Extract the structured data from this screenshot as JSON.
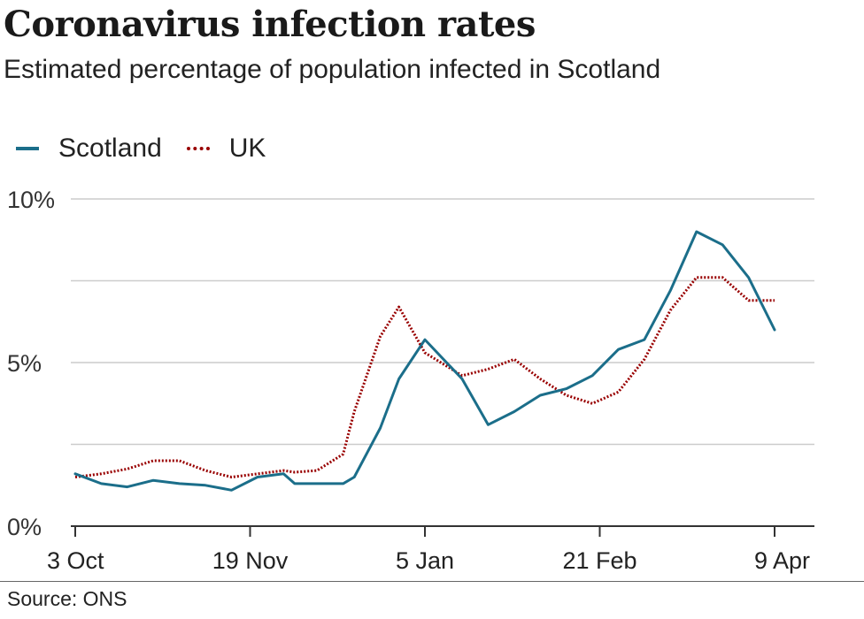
{
  "header": {
    "title": "Coronavirus infection rates",
    "subtitle": "Estimated percentage of population infected in Scotland"
  },
  "footer": {
    "source": "Source: ONS"
  },
  "colors": {
    "scotland": "#1b6e8a",
    "uk": "#990000",
    "grid": "#cccccc",
    "axis": "#333333"
  },
  "chart_data": {
    "type": "line",
    "title": "Coronavirus infection rates",
    "subtitle": "Estimated percentage of population infected in Scotland",
    "xlabel": "",
    "ylabel": "",
    "ylim": [
      0,
      10
    ],
    "y_ticks": [
      0,
      2.5,
      5,
      7.5,
      10
    ],
    "y_tick_labels": [
      "0%",
      "",
      "5%",
      "",
      "10%"
    ],
    "x_ticks": [
      "2020-10-03",
      "2020-11-19",
      "2021-01-05",
      "2021-02-21",
      "2021-04-09"
    ],
    "x_tick_labels": [
      "3 Oct",
      "19 Nov",
      "5 Jan",
      "21 Feb",
      "9 Apr"
    ],
    "grid": true,
    "legend_position": "top-left",
    "series": [
      {
        "name": "Scotland",
        "style": "solid",
        "x": [
          "2020-10-03",
          "2020-10-10",
          "2020-10-17",
          "2020-10-24",
          "2020-10-31",
          "2020-11-07",
          "2020-11-14",
          "2020-11-21",
          "2020-11-28",
          "2020-12-01",
          "2020-12-07",
          "2020-12-14",
          "2020-12-17",
          "2020-12-24",
          "2020-12-29",
          "2021-01-05",
          "2021-01-15",
          "2021-01-22",
          "2021-01-29",
          "2021-02-05",
          "2021-02-12",
          "2021-02-19",
          "2021-02-26",
          "2021-03-05",
          "2021-03-12",
          "2021-03-19",
          "2021-03-26",
          "2021-04-02",
          "2021-04-09"
        ],
        "values": [
          1.6,
          1.3,
          1.2,
          1.4,
          1.3,
          1.25,
          1.1,
          1.5,
          1.6,
          1.3,
          1.3,
          1.3,
          1.5,
          3.0,
          4.5,
          5.7,
          4.5,
          3.1,
          3.5,
          4.0,
          4.2,
          4.6,
          5.4,
          5.7,
          7.2,
          9.0,
          8.6,
          7.6,
          6.0
        ]
      },
      {
        "name": "UK",
        "style": "dotted",
        "x": [
          "2020-10-03",
          "2020-10-10",
          "2020-10-17",
          "2020-10-24",
          "2020-10-31",
          "2020-11-07",
          "2020-11-14",
          "2020-11-21",
          "2020-11-28",
          "2020-12-01",
          "2020-12-07",
          "2020-12-14",
          "2020-12-17",
          "2020-12-24",
          "2020-12-29",
          "2021-01-05",
          "2021-01-15",
          "2021-01-22",
          "2021-01-29",
          "2021-02-05",
          "2021-02-12",
          "2021-02-19",
          "2021-02-26",
          "2021-03-05",
          "2021-03-12",
          "2021-03-19",
          "2021-03-26",
          "2021-04-02",
          "2021-04-09"
        ],
        "values": [
          1.5,
          1.6,
          1.75,
          2.0,
          2.0,
          1.7,
          1.5,
          1.6,
          1.7,
          1.65,
          1.7,
          2.2,
          3.5,
          5.8,
          6.7,
          5.3,
          4.6,
          4.8,
          5.1,
          4.5,
          4.0,
          3.75,
          4.1,
          5.1,
          6.6,
          7.6,
          7.6,
          6.9,
          6.9
        ]
      }
    ]
  }
}
